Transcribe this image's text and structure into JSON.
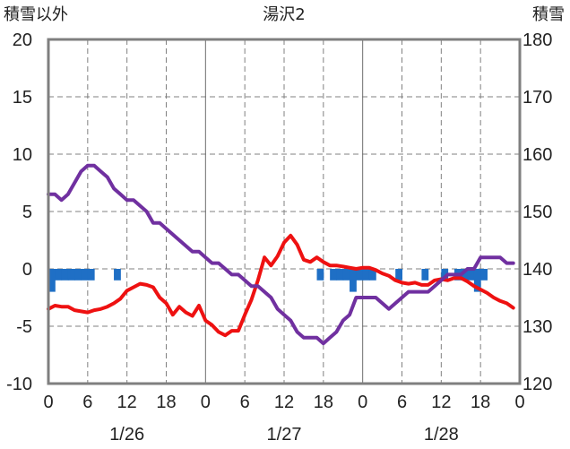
{
  "chart_data": {
    "type": "line",
    "title": "湯沢2",
    "y_left_label": "積雪以外",
    "y_right_label": "積雪",
    "y_left_range": [
      -10,
      20
    ],
    "y_left_ticks": [
      "20",
      "15",
      "10",
      "5",
      "0",
      "-5",
      "-10"
    ],
    "y_right_range": [
      120,
      180
    ],
    "y_right_ticks": [
      "180",
      "170",
      "160",
      "150",
      "140",
      "130",
      "120"
    ],
    "x_range_hours": [
      0,
      72
    ],
    "x_ticks": [
      "0",
      "6",
      "12",
      "18",
      "0",
      "6",
      "12",
      "18",
      "0",
      "6",
      "12",
      "18",
      "0"
    ],
    "date_labels": [
      "1/26",
      "1/27",
      "1/28"
    ],
    "grid": true,
    "colors": {
      "temperature": "#ee1111",
      "precipitation": "#1f6fc5",
      "snow_depth": "#7030a0",
      "axis": "#7f7f7f",
      "grid": "#808080"
    },
    "series": [
      {
        "axis": "left",
        "x": [
          0,
          1,
          2,
          3,
          4,
          5,
          6,
          7,
          8,
          9,
          10,
          11,
          12,
          13,
          14,
          15,
          16,
          17,
          18,
          19,
          20,
          21,
          22,
          23,
          24,
          25,
          26,
          27,
          28,
          29,
          30,
          31,
          32,
          33,
          34,
          35,
          36,
          37,
          38,
          39,
          40,
          41,
          42,
          43,
          44,
          45,
          46,
          47,
          48,
          49,
          50,
          51,
          52,
          53,
          54,
          55,
          56,
          57,
          58,
          59,
          60,
          61,
          62,
          63,
          64,
          65,
          66,
          67,
          68,
          69,
          70,
          71
        ],
        "values": [
          -3.5,
          -3.2,
          -3.3,
          -3.3,
          -3.6,
          -3.7,
          -3.8,
          -3.6,
          -3.5,
          -3.3,
          -3,
          -2.6,
          -1.9,
          -1.6,
          -1.3,
          -1.4,
          -1.6,
          -2.5,
          -3,
          -4,
          -3.3,
          -3.8,
          -4.1,
          -3.2,
          -4.5,
          -4.9,
          -5.5,
          -5.8,
          -5.4,
          -5.4,
          -4,
          -2.7,
          -1,
          1,
          0.3,
          1.1,
          2.3,
          2.9,
          2.1,
          0.8,
          0.6,
          1,
          0.6,
          0.3,
          0.3,
          0.2,
          0.1,
          0,
          0.1,
          0.1,
          -0.1,
          -0.4,
          -0.6,
          -1,
          -1.2,
          -1.3,
          -1.2,
          -1.4,
          -1.4,
          -1,
          -0.9,
          -1,
          -0.8,
          -0.8,
          -1.1,
          -1.5,
          -1.8,
          -2.1,
          -2.5,
          -2.8,
          -3,
          -3.4
        ]
      },
      {
        "axis": "left",
        "type": "bar",
        "x": [
          0,
          1,
          2,
          3,
          4,
          5,
          6,
          10,
          41,
          43,
          44,
          45,
          46,
          47,
          48,
          49,
          53,
          57,
          60,
          62,
          63,
          64,
          65,
          66
        ],
        "values": [
          -2,
          -1,
          -1,
          -1,
          -1,
          -1,
          -1,
          -1,
          -1,
          -1,
          -1,
          -1,
          -2,
          -1,
          -1,
          -1,
          -1,
          -1,
          -1,
          -1,
          -1,
          -1,
          -2,
          -1
        ]
      },
      {
        "axis": "right",
        "x": [
          0,
          1,
          2,
          3,
          4,
          5,
          6,
          7,
          8,
          9,
          10,
          11,
          12,
          13,
          14,
          15,
          16,
          17,
          18,
          19,
          20,
          21,
          22,
          23,
          24,
          25,
          26,
          27,
          28,
          29,
          30,
          31,
          32,
          33,
          34,
          35,
          36,
          37,
          38,
          39,
          40,
          41,
          42,
          43,
          44,
          45,
          46,
          47,
          48,
          49,
          50,
          51,
          52,
          53,
          54,
          55,
          56,
          57,
          58,
          59,
          60,
          61,
          62,
          63,
          64,
          65,
          66,
          67,
          68,
          69,
          70,
          71
        ],
        "values": [
          153,
          153,
          152,
          153,
          155,
          157,
          158,
          158,
          157,
          156,
          154,
          153,
          152,
          152,
          151,
          150,
          148,
          148,
          147,
          146,
          145,
          144,
          143,
          143,
          142,
          141,
          141,
          140,
          139,
          139,
          138,
          137,
          137,
          136,
          135,
          133,
          132,
          131,
          129,
          128,
          128,
          128,
          127,
          128,
          129,
          131,
          132,
          135,
          135,
          135,
          135,
          134,
          133,
          134,
          135,
          136,
          136,
          136,
          136,
          137,
          138,
          139,
          139,
          139,
          140,
          140,
          142,
          142,
          142,
          142,
          141,
          141
        ]
      }
    ]
  }
}
